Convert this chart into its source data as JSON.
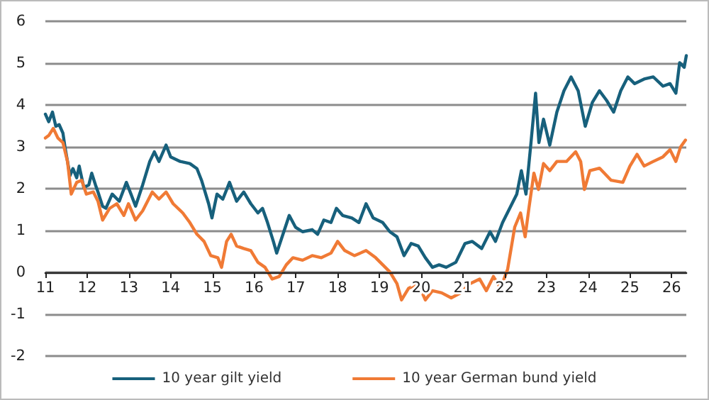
{
  "chart_data": {
    "type": "line",
    "xlim": [
      11,
      26.35
    ],
    "xticks": [
      11,
      12,
      13,
      14,
      15,
      16,
      17,
      18,
      19,
      20,
      21,
      22,
      23,
      24,
      25,
      26
    ],
    "ylim": [
      -2,
      6
    ],
    "yticks": [
      -2,
      -1,
      0,
      1,
      2,
      3,
      4,
      5,
      6
    ],
    "grid": "y",
    "legend": "bottom",
    "marker": "none",
    "line_style": "solid",
    "series": [
      {
        "name": "10 year gilt yield",
        "color": "#17607c",
        "x": [
          11.0,
          11.08,
          11.17,
          11.25,
          11.33,
          11.42,
          11.47,
          11.59,
          11.66,
          11.75,
          11.81,
          11.92,
          12.04,
          12.11,
          12.2,
          12.26,
          12.37,
          12.45,
          12.6,
          12.77,
          12.94,
          13.05,
          13.16,
          13.33,
          13.5,
          13.61,
          13.72,
          13.89,
          14.0,
          14.23,
          14.46,
          14.63,
          14.74,
          14.91,
          14.99,
          15.11,
          15.25,
          15.41,
          15.58,
          15.75,
          15.92,
          16.09,
          16.2,
          16.32,
          16.46,
          16.54,
          16.71,
          16.84,
          16.99,
          17.16,
          17.39,
          17.52,
          17.67,
          17.84,
          17.97,
          18.12,
          18.34,
          18.51,
          18.68,
          18.85,
          19.08,
          19.25,
          19.42,
          19.59,
          19.76,
          19.93,
          20.1,
          20.27,
          20.43,
          20.6,
          20.83,
          21.05,
          21.22,
          21.45,
          21.65,
          21.78,
          21.95,
          22.12,
          22.29,
          22.4,
          22.51,
          22.63,
          22.74,
          22.82,
          22.93,
          23.08,
          23.25,
          23.42,
          23.59,
          23.76,
          23.93,
          24.1,
          24.27,
          24.44,
          24.61,
          24.78,
          24.95,
          25.11,
          25.34,
          25.56,
          25.79,
          25.96,
          26.1,
          26.19,
          26.3,
          26.35
        ],
        "values": [
          3.78,
          3.6,
          3.83,
          3.49,
          3.53,
          3.33,
          2.99,
          2.31,
          2.48,
          2.26,
          2.54,
          2.03,
          2.09,
          2.37,
          2.09,
          1.92,
          1.58,
          1.53,
          1.87,
          1.7,
          2.15,
          1.87,
          1.58,
          2.09,
          2.65,
          2.88,
          2.65,
          3.04,
          2.76,
          2.65,
          2.6,
          2.48,
          2.2,
          1.64,
          1.3,
          1.87,
          1.75,
          2.15,
          1.7,
          1.92,
          1.64,
          1.42,
          1.53,
          1.19,
          0.74,
          0.46,
          0.97,
          1.36,
          1.08,
          0.97,
          1.02,
          0.91,
          1.25,
          1.19,
          1.53,
          1.36,
          1.3,
          1.19,
          1.64,
          1.3,
          1.19,
          0.97,
          0.85,
          0.4,
          0.69,
          0.63,
          0.35,
          0.12,
          0.18,
          0.12,
          0.24,
          0.69,
          0.74,
          0.57,
          0.97,
          0.74,
          1.19,
          1.53,
          1.87,
          2.43,
          1.87,
          3.1,
          4.28,
          3.1,
          3.66,
          3.04,
          3.83,
          4.34,
          4.67,
          4.34,
          3.49,
          4.06,
          4.34,
          4.11,
          3.83,
          4.34,
          4.67,
          4.51,
          4.62,
          4.67,
          4.45,
          4.51,
          4.28,
          5.01,
          4.9,
          5.18
        ]
      },
      {
        "name": "10 year German bund yield",
        "color": "#f07a35",
        "x": [
          11.0,
          11.08,
          11.19,
          11.3,
          11.42,
          11.53,
          11.62,
          11.75,
          11.87,
          11.98,
          12.15,
          12.26,
          12.37,
          12.54,
          12.71,
          12.88,
          12.99,
          13.16,
          13.33,
          13.56,
          13.72,
          13.89,
          14.06,
          14.29,
          14.46,
          14.63,
          14.8,
          14.96,
          15.13,
          15.22,
          15.34,
          15.45,
          15.58,
          15.75,
          15.92,
          16.09,
          16.26,
          16.43,
          16.6,
          16.77,
          16.93,
          17.16,
          17.39,
          17.61,
          17.84,
          18.0,
          18.17,
          18.4,
          18.68,
          18.91,
          19.08,
          19.25,
          19.42,
          19.53,
          19.7,
          19.93,
          20.1,
          20.27,
          20.49,
          20.72,
          20.95,
          21.17,
          21.4,
          21.56,
          21.73,
          21.9,
          22.07,
          22.24,
          22.38,
          22.49,
          22.58,
          22.7,
          22.81,
          22.93,
          23.08,
          23.25,
          23.48,
          23.7,
          23.82,
          23.91,
          24.04,
          24.27,
          24.55,
          24.83,
          25.0,
          25.17,
          25.34,
          25.56,
          25.79,
          25.96,
          26.1,
          26.21,
          26.33
        ],
        "values": [
          3.21,
          3.27,
          3.44,
          3.21,
          3.1,
          2.65,
          1.87,
          2.15,
          2.2,
          1.87,
          1.92,
          1.7,
          1.25,
          1.53,
          1.64,
          1.36,
          1.64,
          1.25,
          1.47,
          1.92,
          1.75,
          1.92,
          1.64,
          1.42,
          1.19,
          0.91,
          0.74,
          0.4,
          0.35,
          0.12,
          0.74,
          0.91,
          0.63,
          0.57,
          0.52,
          0.24,
          0.12,
          -0.16,
          -0.1,
          0.18,
          0.35,
          0.29,
          0.4,
          0.35,
          0.46,
          0.74,
          0.52,
          0.4,
          0.52,
          0.35,
          0.18,
          0.01,
          -0.27,
          -0.66,
          -0.38,
          -0.27,
          -0.66,
          -0.44,
          -0.49,
          -0.61,
          -0.49,
          -0.27,
          -0.16,
          -0.44,
          -0.1,
          -0.38,
          0.07,
          1.08,
          1.42,
          0.85,
          1.53,
          2.37,
          1.98,
          2.6,
          2.43,
          2.65,
          2.65,
          2.88,
          2.65,
          1.98,
          2.43,
          2.49,
          2.2,
          2.15,
          2.54,
          2.82,
          2.54,
          2.65,
          2.76,
          2.93,
          2.65,
          2.99,
          3.16
        ]
      }
    ]
  }
}
